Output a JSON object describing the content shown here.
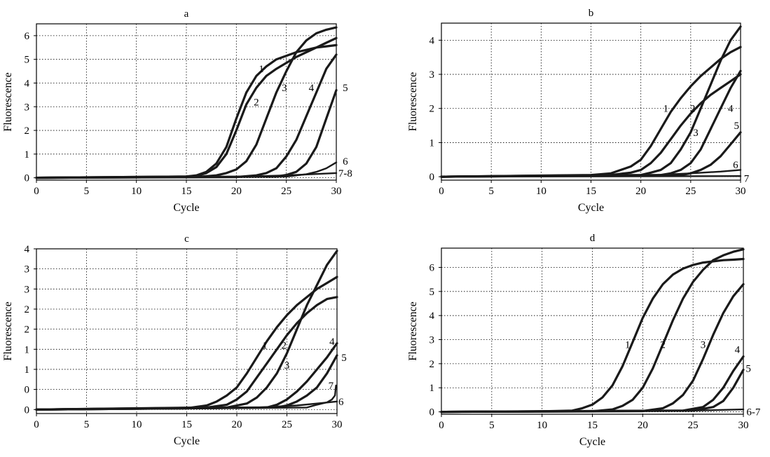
{
  "chart_data": [
    {
      "type": "line",
      "title": "a",
      "xlabel": "Cycle",
      "ylabel": "Fluorescence",
      "xlim": [
        0,
        30
      ],
      "ylim": [
        -0.1,
        6.5
      ],
      "xticks": [
        0,
        5,
        10,
        15,
        20,
        25,
        30
      ],
      "yticks": [
        0,
        1,
        2,
        3,
        4,
        5,
        6
      ],
      "ytick_labels": [
        "0",
        "1",
        "2",
        "3",
        "4",
        "5",
        "6"
      ],
      "grid": true,
      "series": [
        {
          "name": "1",
          "x": [
            0,
            15,
            16,
            17,
            18,
            19,
            20,
            21,
            22,
            23,
            24,
            25,
            26,
            27,
            28,
            29,
            30
          ],
          "values": [
            0,
            0.05,
            0.1,
            0.25,
            0.6,
            1.3,
            2.5,
            3.6,
            4.3,
            4.7,
            5.0,
            5.15,
            5.3,
            5.4,
            5.5,
            5.55,
            5.6
          ]
        },
        {
          "name": "2",
          "x": [
            0,
            15,
            16,
            17,
            18,
            19,
            20,
            21,
            22,
            23,
            24,
            25,
            26,
            27,
            28,
            29,
            30
          ],
          "values": [
            0,
            0.05,
            0.08,
            0.2,
            0.45,
            1.0,
            2.0,
            3.1,
            3.8,
            4.3,
            4.6,
            4.85,
            5.1,
            5.3,
            5.5,
            5.7,
            5.9
          ]
        },
        {
          "name": "3",
          "x": [
            0,
            16,
            18,
            19,
            20,
            21,
            22,
            23,
            24,
            25,
            26,
            27,
            28,
            29,
            30
          ],
          "values": [
            0,
            0.03,
            0.1,
            0.2,
            0.35,
            0.7,
            1.4,
            2.5,
            3.6,
            4.5,
            5.3,
            5.8,
            6.1,
            6.25,
            6.35
          ]
        },
        {
          "name": "4",
          "x": [
            0,
            20,
            22,
            23,
            24,
            25,
            26,
            27,
            28,
            29,
            30
          ],
          "values": [
            0,
            0.03,
            0.1,
            0.2,
            0.4,
            0.9,
            1.6,
            2.6,
            3.6,
            4.6,
            5.2
          ]
        },
        {
          "name": "5",
          "x": [
            0,
            24,
            25,
            26,
            27,
            28,
            29,
            30
          ],
          "values": [
            0,
            0.05,
            0.12,
            0.25,
            0.6,
            1.3,
            2.5,
            3.7
          ]
        },
        {
          "name": "6",
          "x": [
            0,
            25,
            27,
            28,
            29,
            30
          ],
          "values": [
            0,
            0.05,
            0.15,
            0.25,
            0.4,
            0.65
          ]
        },
        {
          "name": "7-8",
          "x": [
            0,
            20,
            25,
            30
          ],
          "values": [
            0,
            0.03,
            0.1,
            0.2
          ]
        }
      ],
      "annotations": [
        {
          "text": "1",
          "x": 22.5,
          "y": 4.6
        },
        {
          "text": "2",
          "x": 22.0,
          "y": 3.2
        },
        {
          "text": "3",
          "x": 24.8,
          "y": 3.8
        },
        {
          "text": "4",
          "x": 27.5,
          "y": 3.8
        },
        {
          "text": "5",
          "x": 30.9,
          "y": 3.8
        },
        {
          "text": "6",
          "x": 30.9,
          "y": 0.7
        },
        {
          "text": "7-8",
          "x": 30.9,
          "y": 0.2
        }
      ]
    },
    {
      "type": "line",
      "title": "b",
      "xlabel": "Cycle",
      "ylabel": "Fluorescence",
      "xlim": [
        0,
        30
      ],
      "ylim": [
        -0.1,
        4.5
      ],
      "xticks": [
        0,
        5,
        10,
        15,
        20,
        25,
        30
      ],
      "yticks": [
        0,
        1,
        2,
        3,
        4
      ],
      "ytick_labels": [
        "0",
        "1",
        "2",
        "3",
        "4"
      ],
      "grid": true,
      "series": [
        {
          "name": "1",
          "x": [
            0,
            15,
            17,
            18,
            19,
            20,
            21,
            22,
            23,
            24,
            25,
            26,
            27,
            28,
            29,
            30
          ],
          "values": [
            0,
            0.05,
            0.1,
            0.2,
            0.3,
            0.5,
            0.9,
            1.4,
            1.9,
            2.3,
            2.65,
            2.95,
            3.2,
            3.45,
            3.65,
            3.8
          ]
        },
        {
          "name": "2",
          "x": [
            0,
            17,
            19,
            20,
            21,
            22,
            23,
            24,
            25,
            26,
            27,
            28,
            29,
            30
          ],
          "values": [
            0,
            0.05,
            0.12,
            0.2,
            0.4,
            0.7,
            1.1,
            1.5,
            1.85,
            2.15,
            2.4,
            2.6,
            2.8,
            3.0
          ]
        },
        {
          "name": "3",
          "x": [
            0,
            20,
            21,
            22,
            23,
            24,
            25,
            26,
            27,
            28,
            29,
            30
          ],
          "values": [
            0,
            0.05,
            0.12,
            0.2,
            0.4,
            0.8,
            1.3,
            2.0,
            2.7,
            3.4,
            4.0,
            4.4
          ]
        },
        {
          "name": "4",
          "x": [
            0,
            22,
            23,
            24,
            25,
            26,
            27,
            28,
            29,
            30
          ],
          "values": [
            0,
            0.05,
            0.1,
            0.2,
            0.4,
            0.8,
            1.4,
            2.0,
            2.6,
            3.1
          ]
        },
        {
          "name": "5",
          "x": [
            0,
            24,
            25,
            26,
            27,
            28,
            29,
            30
          ],
          "values": [
            0,
            0.05,
            0.1,
            0.2,
            0.35,
            0.6,
            0.95,
            1.3
          ]
        },
        {
          "name": "6",
          "x": [
            0,
            20,
            25,
            28,
            30
          ],
          "values": [
            0,
            0.03,
            0.1,
            0.15,
            0.2
          ]
        },
        {
          "name": "7",
          "x": [
            0,
            30
          ],
          "values": [
            0,
            0.02
          ]
        }
      ],
      "annotations": [
        {
          "text": "1",
          "x": 22.5,
          "y": 2.0
        },
        {
          "text": "2",
          "x": 25.2,
          "y": 2.0
        },
        {
          "text": "3",
          "x": 25.5,
          "y": 1.3
        },
        {
          "text": "4",
          "x": 29.0,
          "y": 2.0
        },
        {
          "text": "5",
          "x": 29.6,
          "y": 1.5
        },
        {
          "text": "6",
          "x": 29.5,
          "y": 0.35
        },
        {
          "text": "7",
          "x": 30.6,
          "y": -0.05
        }
      ]
    },
    {
      "type": "line",
      "title": "c",
      "xlabel": "Cycle",
      "ylabel": "Fluorescence",
      "xlim": [
        0,
        30
      ],
      "ylim": [
        -0.1,
        4.0
      ],
      "xticks": [
        0,
        5,
        10,
        15,
        20,
        25,
        30
      ],
      "yticks": [
        0,
        0.5,
        1,
        1.5,
        2,
        2.5,
        3,
        3.5,
        4
      ],
      "ytick_labels": [
        "0",
        "0",
        "1",
        "1",
        "2",
        "2",
        "3",
        "3",
        "4"
      ],
      "grid": true,
      "series": [
        {
          "name": "1",
          "x": [
            0,
            15,
            17,
            18,
            19,
            20,
            21,
            22,
            23,
            24,
            25,
            26,
            27,
            28,
            29,
            30
          ],
          "values": [
            0,
            0.03,
            0.1,
            0.2,
            0.35,
            0.55,
            0.9,
            1.3,
            1.7,
            2.05,
            2.35,
            2.6,
            2.8,
            3.0,
            3.15,
            3.3
          ]
        },
        {
          "name": "2",
          "x": [
            0,
            17,
            19,
            20,
            21,
            22,
            23,
            24,
            25,
            26,
            27,
            28,
            29,
            30
          ],
          "values": [
            0,
            0.05,
            0.12,
            0.25,
            0.45,
            0.8,
            1.15,
            1.5,
            1.85,
            2.15,
            2.4,
            2.6,
            2.75,
            2.8
          ]
        },
        {
          "name": "3",
          "x": [
            0,
            19,
            21,
            22,
            23,
            24,
            25,
            26,
            27,
            28,
            29,
            30
          ],
          "values": [
            0,
            0.05,
            0.15,
            0.3,
            0.55,
            0.9,
            1.4,
            2.0,
            2.6,
            3.1,
            3.6,
            3.95
          ]
        },
        {
          "name": "4",
          "x": [
            0,
            23,
            24,
            25,
            26,
            27,
            28,
            29,
            30
          ],
          "values": [
            0,
            0.05,
            0.12,
            0.25,
            0.45,
            0.7,
            1.0,
            1.3,
            1.65
          ]
        },
        {
          "name": "5",
          "x": [
            0,
            24,
            25,
            26,
            27,
            28,
            29,
            30
          ],
          "values": [
            0,
            0.05,
            0.1,
            0.2,
            0.35,
            0.55,
            0.9,
            1.35
          ]
        },
        {
          "name": "6",
          "x": [
            0,
            22,
            26,
            28,
            30
          ],
          "values": [
            0,
            0.05,
            0.1,
            0.15,
            0.2
          ]
        },
        {
          "name": "7",
          "x": [
            0,
            27,
            28,
            29,
            29.5,
            29.8,
            29.9
          ],
          "values": [
            0,
            0.05,
            0.12,
            0.18,
            0.25,
            0.35,
            0.6
          ]
        }
      ],
      "annotations": [
        {
          "text": "1",
          "x": 22.8,
          "y": 1.6
        },
        {
          "text": "2",
          "x": 24.7,
          "y": 1.6
        },
        {
          "text": "3",
          "x": 25.0,
          "y": 1.1
        },
        {
          "text": "4",
          "x": 29.5,
          "y": 1.7
        },
        {
          "text": "5",
          "x": 30.7,
          "y": 1.3
        },
        {
          "text": "7",
          "x": 29.4,
          "y": 0.6
        },
        {
          "text": "6",
          "x": 30.4,
          "y": 0.2
        }
      ]
    },
    {
      "type": "line",
      "title": "d",
      "xlabel": "Cycle",
      "ylabel": "Fluorescence",
      "xlim": [
        0,
        30
      ],
      "ylim": [
        -0.1,
        6.8
      ],
      "xticks": [
        0,
        5,
        10,
        15,
        20,
        25,
        30
      ],
      "yticks": [
        0,
        1,
        2,
        3,
        4,
        5,
        6
      ],
      "ytick_labels": [
        "0",
        "1",
        "2",
        "3",
        "4",
        "5",
        "6"
      ],
      "grid": true,
      "series": [
        {
          "name": "1",
          "x": [
            0,
            10,
            13,
            14,
            15,
            16,
            17,
            18,
            19,
            20,
            21,
            22,
            23,
            24,
            25,
            26,
            27,
            28,
            29,
            30
          ],
          "values": [
            0,
            0.02,
            0.05,
            0.15,
            0.3,
            0.6,
            1.1,
            1.9,
            2.9,
            3.9,
            4.7,
            5.3,
            5.7,
            5.95,
            6.1,
            6.2,
            6.25,
            6.3,
            6.32,
            6.35
          ]
        },
        {
          "name": "2",
          "x": [
            0,
            15,
            17,
            18,
            19,
            20,
            21,
            22,
            23,
            24,
            25,
            26,
            27,
            28,
            29,
            30
          ],
          "values": [
            0,
            0.02,
            0.1,
            0.25,
            0.5,
            1.0,
            1.8,
            2.8,
            3.8,
            4.7,
            5.4,
            5.9,
            6.3,
            6.5,
            6.65,
            6.75
          ]
        },
        {
          "name": "3",
          "x": [
            0,
            20,
            22,
            23,
            24,
            25,
            26,
            27,
            28,
            29,
            30
          ],
          "values": [
            0,
            0.03,
            0.15,
            0.35,
            0.7,
            1.3,
            2.2,
            3.2,
            4.1,
            4.8,
            5.3
          ]
        },
        {
          "name": "4",
          "x": [
            0,
            24,
            26,
            27,
            28,
            29,
            30
          ],
          "values": [
            0,
            0.05,
            0.2,
            0.5,
            1.0,
            1.7,
            2.3
          ]
        },
        {
          "name": "5",
          "x": [
            0,
            25,
            27,
            28,
            29,
            30
          ],
          "values": [
            0,
            0.05,
            0.2,
            0.45,
            1.0,
            1.75
          ]
        },
        {
          "name": "6-7",
          "x": [
            0,
            25,
            30
          ],
          "values": [
            0,
            0.05,
            0.1
          ]
        }
      ],
      "annotations": [
        {
          "text": "1",
          "x": 18.5,
          "y": 2.8
        },
        {
          "text": "2",
          "x": 22.0,
          "y": 2.8
        },
        {
          "text": "3",
          "x": 26.0,
          "y": 2.8
        },
        {
          "text": "4",
          "x": 29.4,
          "y": 2.6
        },
        {
          "text": "5",
          "x": 30.5,
          "y": 1.8
        },
        {
          "text": "6-7",
          "x": 31.0,
          "y": 0.0
        }
      ]
    }
  ]
}
